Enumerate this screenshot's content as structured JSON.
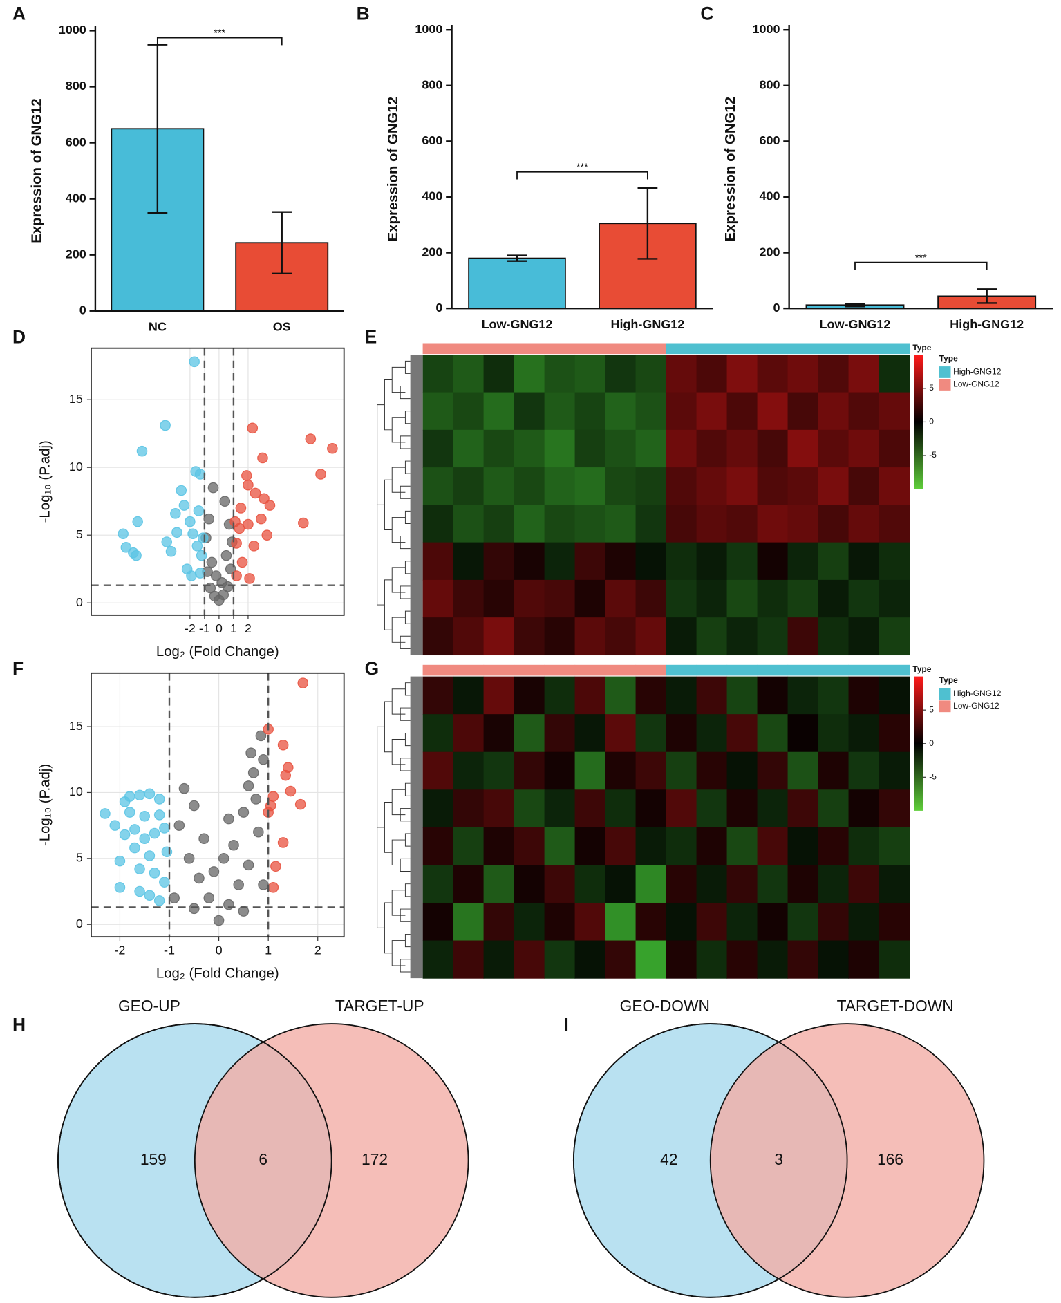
{
  "chart_data": [
    {
      "type": "bar",
      "panel": "A",
      "ylabel": "Expression of GNG12",
      "categories": [
        "NC",
        "OS"
      ],
      "values": [
        650,
        243
      ],
      "errors": [
        300,
        110
      ],
      "colors": [
        "#48bcd8",
        "#e84c35"
      ],
      "ylim": [
        0,
        1000
      ],
      "yticks": [
        0,
        200,
        400,
        600,
        800,
        1000
      ],
      "significance": {
        "label": "***",
        "y": 975
      }
    },
    {
      "type": "bar",
      "panel": "B",
      "ylabel": "Expression of GNG12",
      "categories": [
        "Low-GNG12",
        "High-GNG12"
      ],
      "values": [
        180,
        305
      ],
      "errors": [
        10,
        127
      ],
      "colors": [
        "#48bcd8",
        "#e84c35"
      ],
      "ylim": [
        0,
        1000
      ],
      "yticks": [
        0,
        200,
        400,
        600,
        800,
        1000
      ],
      "significance": {
        "label": "***",
        "y": 490
      }
    },
    {
      "type": "bar",
      "panel": "C",
      "ylabel": "Expression of GNG12",
      "categories": [
        "Low-GNG12",
        "High-GNG12"
      ],
      "values": [
        12,
        44
      ],
      "errors": [
        5,
        25
      ],
      "colors": [
        "#48bcd8",
        "#e84c35"
      ],
      "ylim": [
        0,
        1000
      ],
      "yticks": [
        0,
        200,
        400,
        600,
        800,
        1000
      ],
      "significance": {
        "label": "***",
        "y": 165
      }
    },
    {
      "type": "scatter",
      "panel": "D",
      "xlabel": "Log₂ (Fold Change)",
      "ylabel": "-Log₁₀ (P.adj)",
      "xlim": [
        -8.8,
        8.6
      ],
      "ylim": [
        -0.9,
        18.8
      ],
      "xticks": [
        -2,
        -1,
        0,
        1,
        2
      ],
      "yticks": [
        0,
        5,
        10,
        15
      ],
      "grid": true,
      "thresholds": {
        "x": [
          -1,
          1
        ],
        "y": 1.3
      },
      "series": [
        {
          "color": "#666666",
          "x": [
            0,
            0.3,
            -0.3,
            0.6,
            -0.6,
            0.8,
            -0.8,
            0.5,
            -0.5,
            0.9,
            -0.9,
            0.2,
            -0.2,
            0.7,
            -0.7,
            0.4,
            -0.4
          ],
          "y": [
            0.2,
            0.6,
            0.5,
            1.2,
            1.1,
            2.5,
            2.3,
            3.5,
            3,
            4.5,
            4.8,
            1.5,
            2,
            5.8,
            6.2,
            7.5,
            8.5
          ]
        },
        {
          "color": "#5bc4e4",
          "x": [
            -1.7,
            -3.7,
            -5.3,
            -1.6,
            -1.3,
            -6.6,
            -5.6,
            -6.4,
            -5.9,
            -5.7,
            -3.6,
            -2.9,
            -3,
            -2.4,
            -2,
            -1.8,
            -1.5,
            -1.2,
            -2.2,
            -1.9,
            -1.3,
            -1.1,
            -3.3,
            -2.6,
            -1.4
          ],
          "y": [
            17.8,
            13.1,
            11.2,
            9.7,
            9.5,
            5.1,
            6,
            4.1,
            3.7,
            3.5,
            4.5,
            5.2,
            6.6,
            7.2,
            6,
            5.1,
            4.2,
            3.5,
            2.5,
            2,
            2.2,
            4.8,
            3.8,
            8.3,
            6.8
          ]
        },
        {
          "color": "#e8523f",
          "x": [
            2.3,
            3,
            6.3,
            7.8,
            7,
            5.8,
            1.9,
            2,
            2.5,
            3.1,
            3.5,
            2.9,
            1.5,
            1.4,
            1.2,
            1.6,
            1.2,
            2.1,
            3.3,
            2,
            1.1,
            2.4
          ],
          "y": [
            12.9,
            10.7,
            12.1,
            11.4,
            9.5,
            5.9,
            9.4,
            8.7,
            8.1,
            7.7,
            7.2,
            6.2,
            7,
            5.5,
            4.4,
            3,
            2,
            1.8,
            5,
            5.8,
            6,
            4.2
          ]
        }
      ]
    },
    {
      "type": "heatmap",
      "panel": "E",
      "annotation_label": "Type",
      "legend_title": "Type",
      "legend": [
        {
          "name": "High-GNG12",
          "color": "#4fc0d0"
        },
        {
          "name": "Low-GNG12",
          "color": "#f08a80"
        }
      ],
      "clim": [
        -10,
        10
      ],
      "colorbar_ticks": [
        5,
        0,
        -5
      ],
      "column_type": [
        "Low-GNG12",
        "Low-GNG12",
        "Low-GNG12",
        "Low-GNG12",
        "Low-GNG12",
        "Low-GNG12",
        "Low-GNG12",
        "Low-GNG12",
        "High-GNG12",
        "High-GNG12",
        "High-GNG12",
        "High-GNG12",
        "High-GNG12",
        "High-GNG12",
        "High-GNG12",
        "High-GNG12"
      ],
      "matrix": [
        [
          -1.5,
          -2,
          -1,
          -2.5,
          -1.8,
          -2,
          -1.2,
          -1.6,
          2,
          1.5,
          2.5,
          1.8,
          2.2,
          1.6,
          2.4,
          -1
        ],
        [
          -2,
          -1.6,
          -2.4,
          -1.2,
          -2,
          -1.5,
          -2.2,
          -1.8,
          1.8,
          2.4,
          1.5,
          2.6,
          1.4,
          2.2,
          1.6,
          2
        ],
        [
          -1.2,
          -2.2,
          -1.6,
          -2,
          -2.6,
          -1.4,
          -1.8,
          -2.2,
          2.2,
          1.6,
          2,
          1.4,
          2.6,
          1.8,
          2.2,
          1.5
        ],
        [
          -1.8,
          -1.4,
          -2,
          -1.6,
          -2.2,
          -2.4,
          -1.6,
          -1.4,
          1.6,
          2,
          2.4,
          1.6,
          1.8,
          2.4,
          1.4,
          2.2
        ],
        [
          -1,
          -1.8,
          -1.4,
          -2.2,
          -1.6,
          -1.8,
          -2,
          -1.2,
          1.4,
          1.8,
          1.6,
          2.2,
          2,
          1.4,
          2,
          1.6
        ],
        [
          1.5,
          -0.5,
          1,
          0.5,
          -0.8,
          1.2,
          0.6,
          -0.4,
          -1,
          -0.6,
          -1.2,
          0.4,
          -0.8,
          -1.4,
          -0.5,
          -1
        ],
        [
          2,
          1.2,
          0.8,
          1.6,
          1.4,
          0.6,
          1.8,
          1.2,
          -1.2,
          -0.8,
          -1.6,
          -1,
          -1.4,
          -0.6,
          -1.2,
          -0.8
        ],
        [
          1,
          1.6,
          2.4,
          1.2,
          0.8,
          1.8,
          1.4,
          2,
          -0.6,
          -1.4,
          -0.8,
          -1.2,
          1.2,
          -1,
          -0.6,
          -1.4
        ]
      ]
    },
    {
      "type": "scatter",
      "panel": "F",
      "xlabel": "Log₂ (Fold Change)",
      "ylabel": "-Log₁₀ (P.adj)",
      "xlim": [
        -2.58,
        2.53
      ],
      "ylim": [
        -0.94,
        19.05
      ],
      "xticks": [
        -2,
        -1,
        0,
        1,
        2
      ],
      "yticks": [
        0,
        5,
        10,
        15
      ],
      "grid": true,
      "thresholds": {
        "x": [
          -1,
          1
        ],
        "y": 1.3
      },
      "series": [
        {
          "color": "#666666",
          "x": [
            0,
            0.2,
            -0.2,
            0.4,
            -0.4,
            0.6,
            -0.6,
            0.3,
            -0.3,
            0.8,
            -0.8,
            0.5,
            -0.5,
            0.7,
            0.9,
            0.6,
            0.1,
            -0.1,
            0.9,
            -0.9,
            0.5,
            -0.5,
            0.85,
            0.65,
            0.2,
            -0.7,
            0.75
          ],
          "y": [
            0.3,
            1.5,
            2,
            3,
            3.5,
            4.5,
            5,
            6,
            6.5,
            7,
            7.5,
            8.5,
            9,
            11.5,
            12.5,
            10.5,
            5,
            4,
            3,
            2,
            1,
            1.2,
            14.3,
            13,
            8,
            10.3,
            9.5
          ]
        },
        {
          "color": "#5bc4e4",
          "x": [
            -2.3,
            -2.1,
            -1.9,
            -1.8,
            -1.6,
            -1.4,
            -1.2,
            -1.9,
            -1.7,
            -1.5,
            -1.3,
            -1.1,
            -2,
            -1.6,
            -1.3,
            -1.6,
            -1.4,
            -2,
            -1.2,
            -1.1,
            -1.05,
            -1.5,
            -1.8,
            -1.2,
            -1.7,
            -1.4
          ],
          "y": [
            8.4,
            7.5,
            9.3,
            9.7,
            9.8,
            9.9,
            9.5,
            6.8,
            7.2,
            6.5,
            6.9,
            7.3,
            4.8,
            4.2,
            3.9,
            2.5,
            2.2,
            2.8,
            1.8,
            3.2,
            5.5,
            8.2,
            8.5,
            8.3,
            5.8,
            5.2
          ]
        },
        {
          "color": "#e8523f",
          "x": [
            1.7,
            1,
            1.3,
            1.4,
            1.35,
            1.45,
            1.65,
            1.05,
            1.1,
            1.3,
            1.15,
            1.1,
            1
          ],
          "y": [
            18.3,
            14.8,
            13.6,
            11.9,
            11.3,
            10.1,
            9.1,
            9,
            9.7,
            6.2,
            4.4,
            2.8,
            8.5
          ]
        }
      ]
    },
    {
      "type": "heatmap",
      "panel": "G",
      "annotation_label": "Type",
      "legend_title": "Type",
      "legend": [
        {
          "name": "High-GNG12",
          "color": "#4fc0d0"
        },
        {
          "name": "Low-GNG12",
          "color": "#f08a80"
        }
      ],
      "clim": [
        -10,
        10
      ],
      "colorbar_ticks": [
        5,
        0,
        -5
      ],
      "column_type": [
        "Low-GNG12",
        "Low-GNG12",
        "Low-GNG12",
        "Low-GNG12",
        "Low-GNG12",
        "Low-GNG12",
        "Low-GNG12",
        "Low-GNG12",
        "High-GNG12",
        "High-GNG12",
        "High-GNG12",
        "High-GNG12",
        "High-GNG12",
        "High-GNG12",
        "High-GNG12",
        "High-GNG12"
      ],
      "matrix": [
        [
          1,
          -0.5,
          2,
          0.5,
          -1,
          1.5,
          -2,
          0.8,
          -0.6,
          1.2,
          -1.5,
          0.4,
          -0.8,
          -1.2,
          0.6,
          -0.4
        ],
        [
          -1,
          1.5,
          0.5,
          -2,
          1,
          -0.5,
          1.8,
          -1.2,
          0.6,
          -0.8,
          1.4,
          -1.6,
          0.2,
          -1,
          -0.6,
          0.8
        ],
        [
          1.6,
          -0.8,
          -1.2,
          1,
          0.4,
          -2.4,
          0.6,
          1.2,
          -1.4,
          0.8,
          -0.4,
          1,
          -1.8,
          0.6,
          -1.2,
          -0.6
        ],
        [
          -0.6,
          1,
          1.4,
          -1.6,
          -0.8,
          1.2,
          -1,
          0.4,
          1.6,
          -1.2,
          0.6,
          -0.8,
          1.2,
          -1.4,
          0.4,
          1
        ],
        [
          0.8,
          -1.4,
          0.6,
          1.2,
          -2,
          0.4,
          1.4,
          -0.6,
          -1,
          0.6,
          -1.6,
          1.4,
          -0.4,
          0.8,
          -1,
          -1.4
        ],
        [
          -1.2,
          0.6,
          -2,
          0.4,
          1.2,
          -1,
          -0.4,
          -3,
          0.8,
          -0.6,
          1,
          -1.2,
          0.6,
          -0.8,
          1.2,
          -0.6
        ],
        [
          0.4,
          -2.6,
          1,
          -0.8,
          0.6,
          1.6,
          -3.2,
          0.8,
          -0.4,
          1.2,
          -0.8,
          0.4,
          -1.2,
          1,
          -0.6,
          0.8
        ],
        [
          -0.8,
          1.2,
          -0.6,
          1.4,
          -1.2,
          -0.4,
          1,
          -3.6,
          0.6,
          -1,
          0.8,
          -0.6,
          1,
          -0.4,
          0.6,
          -1
        ]
      ]
    },
    {
      "type": "venn",
      "panel": "H",
      "sets": [
        "GEO-UP",
        "TARGET-UP"
      ],
      "values": [
        159,
        6,
        172
      ],
      "colors": [
        "#b9e1f1",
        "#f3aea6"
      ]
    },
    {
      "type": "venn",
      "panel": "I",
      "sets": [
        "GEO-DOWN",
        "TARGET-DOWN"
      ],
      "values": [
        42,
        3,
        166
      ],
      "colors": [
        "#b9e1f1",
        "#f3aea6"
      ]
    }
  ]
}
